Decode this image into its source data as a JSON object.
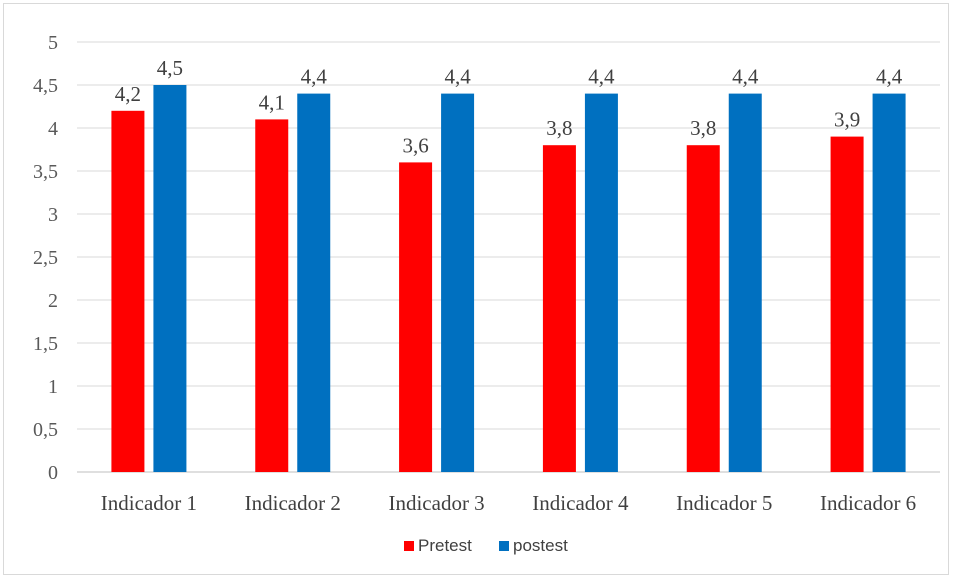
{
  "chart_data": {
    "type": "bar",
    "categories": [
      "Indicador 1",
      "Indicador 2",
      "Indicador 3",
      "Indicador 4",
      "Indicador 5",
      "Indicador 6"
    ],
    "series": [
      {
        "name": "Pretest",
        "color": "#ff0000",
        "values": [
          4.2,
          4.1,
          3.6,
          3.8,
          3.8,
          3.9
        ],
        "labels": [
          "4,2",
          "4,1",
          "3,6",
          "3,8",
          "3,8",
          "3,9"
        ]
      },
      {
        "name": "postest",
        "color": "#0070c0",
        "values": [
          4.5,
          4.4,
          4.4,
          4.4,
          4.4,
          4.4
        ],
        "labels": [
          "4,5",
          "4,4",
          "4,4",
          "4,4",
          "4,4",
          "4,4"
        ]
      }
    ],
    "ylim": [
      0,
      5
    ],
    "y_ticks": [
      "0",
      "0,5",
      "1",
      "1,5",
      "2",
      "2,5",
      "3",
      "3,5",
      "4",
      "4,5",
      "5"
    ],
    "grid": true,
    "legend_position": "bottom",
    "title": "",
    "xlabel": "",
    "ylabel": ""
  }
}
